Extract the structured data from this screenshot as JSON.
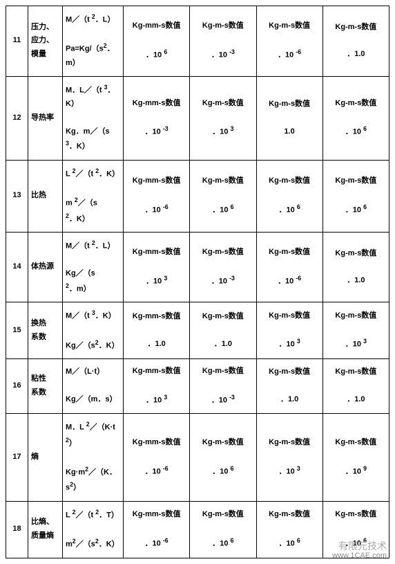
{
  "watermark": {
    "cn": "有限元技术",
    "en": "www.1CAE.com"
  },
  "rows": [
    {
      "idx": "11",
      "name": "压力、应力、模量",
      "unit": "M／（t <sup>2</sup>．L）<br><br>Pa=Kg/（s<sup>2</sup>．m）",
      "c1": "Kg-mm-s数值<br><br>．10 <sup>6</sup>",
      "c2": "Kg-m-s数值<br><br>．10 <sup>-3</sup>",
      "c3": "Kg-m-s数值<br><br>．10 <sup>-6</sup>",
      "c4": "Kg-m-s数值<br><br>．1.0"
    },
    {
      "idx": "12",
      "name": "导热率",
      "unit": "M．L／（t <sup>3</sup>．K）<br><br>Kg．m／（s<sup>3</sup>．K）",
      "c1": "Kg-mm-s数值<br><br>．10 <sup>-3</sup>",
      "c2": "Kg-m-s数值<br><br>．10 <sup>3</sup>",
      "c3": "Kg-m-s数值<br><br>1.0",
      "c4": "Kg-m-s数值<br><br>．10 <sup>6</sup>"
    },
    {
      "idx": "13",
      "name": "比热",
      "unit": "L <sup>2</sup>／（t <sup>2</sup>．K）<br><br>m <sup>2</sup>／（s <sup>2</sup>．K）",
      "c1": "Kg-mm-s数值<br><br>．10 <sup>-6</sup>",
      "c2": "Kg-m-s数值<br><br>．10 <sup>6</sup>",
      "c3": "Kg-m-s数值<br><br>．10 <sup>6</sup>",
      "c4": "Kg-m-s数值<br><br>．10 <sup>6</sup>"
    },
    {
      "idx": "14",
      "name": "体热源",
      "unit": "M／（t <sup>2</sup>．L）<br><br>Kg／（s<sup>2</sup>．m）",
      "c1": "Kg-mm-s数值<br><br>．10 <sup>3</sup>",
      "c2": "Kg-m-s数值<br><br>．10 <sup>-3</sup>",
      "c3": "Kg-m-s数值<br><br>．10 <sup>-6</sup>",
      "c4": "Kg-m-s数值<br><br>．1.0"
    },
    {
      "idx": "15",
      "name": "换热<br>系数",
      "unit": "M／（t <sup>3</sup>．K）<br><br>Kg／（s<sup>2</sup>．K）",
      "c1": "Kg-mm-s数值<br><br>．1.0",
      "c2": "Kg-m-s数值<br><br>．1.0",
      "c3": "Kg-m-s数值<br><br>．10 <sup>3</sup>",
      "c4": "Kg-m-s数值<br><br>．10 <sup>3</sup>"
    },
    {
      "idx": "16",
      "name": "粘性<br>系数",
      "unit": "M／（L·t）<br><br>Kg／（m．s）",
      "c1": "Kg-mm-s数值<br><br>．10 <sup>3</sup>",
      "c2": "Kg-m-s数值<br><br>．10 <sup>-3</sup>",
      "c3": "Kg-m-s数值<br><br>．1.0",
      "c4": "Kg-m-s数值<br><br>．1.0"
    },
    {
      "idx": "17",
      "name": "熵",
      "unit": "M．L <sup>2</sup>／（K·t <sup>2</sup>）<br><br>Kg·m<sup>2</sup>／（K．s<sup>2</sup>）",
      "c1": "Kg-mm-s数值<br><br>．10 <sup>-6</sup>",
      "c2": "Kg-m-s数值<br><br>．10 <sup>6</sup>",
      "c3": "Kg-m-s数值<br><br>．10 <sup>3</sup>",
      "c4": "Kg-m-s数值<br><br>．10 <sup>9</sup>"
    },
    {
      "idx": "18",
      "name": "比熵、<br>质量熵",
      "unit": "L <sup>2</sup>／（t <sup>2</sup>．T）<br><br>m<sup>2</sup>／（s<sup>2</sup>．K）",
      "c1": "Kg-mm-s数值<br><br>．10 <sup>-6</sup>",
      "c2": "Kg-m-s数值<br><br>．10 <sup>6</sup>",
      "c3": "Kg-m-s数值<br><br>．10 <sup>6</sup>",
      "c4": "Kg-m-s数值<br><br>．10 <sup>6</sup>"
    }
  ]
}
